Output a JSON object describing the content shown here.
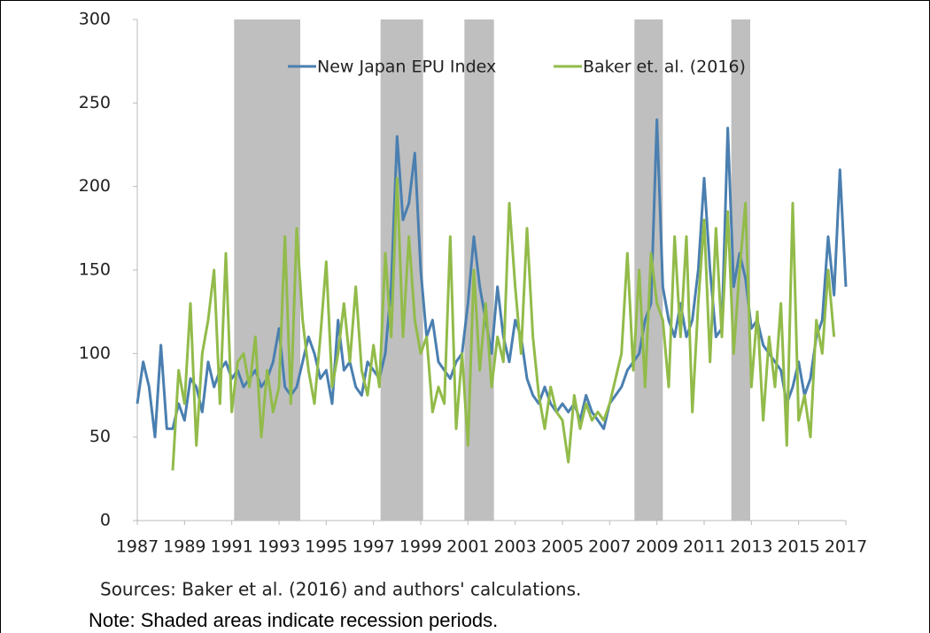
{
  "chart_data": {
    "type": "line",
    "x": [
      1987,
      1987.25,
      1987.5,
      1987.75,
      1988,
      1988.25,
      1988.5,
      1988.75,
      1989,
      1989.25,
      1989.5,
      1989.75,
      1990,
      1990.25,
      1990.5,
      1990.75,
      1991,
      1991.25,
      1991.5,
      1991.75,
      1992,
      1992.25,
      1992.5,
      1992.75,
      1993,
      1993.25,
      1993.5,
      1993.75,
      1994,
      1994.25,
      1994.5,
      1994.75,
      1995,
      1995.25,
      1995.5,
      1995.75,
      1996,
      1996.25,
      1996.5,
      1996.75,
      1997,
      1997.25,
      1997.5,
      1997.75,
      1998,
      1998.25,
      1998.5,
      1998.75,
      1999,
      1999.25,
      1999.5,
      1999.75,
      2000,
      2000.25,
      2000.5,
      2000.75,
      2001,
      2001.25,
      2001.5,
      2001.75,
      2002,
      2002.25,
      2002.5,
      2002.75,
      2003,
      2003.25,
      2003.5,
      2003.75,
      2004,
      2004.25,
      2004.5,
      2004.75,
      2005,
      2005.25,
      2005.5,
      2005.75,
      2006,
      2006.25,
      2006.5,
      2006.75,
      2007,
      2007.25,
      2007.5,
      2007.75,
      2008,
      2008.25,
      2008.5,
      2008.75,
      2009,
      2009.25,
      2009.5,
      2009.75,
      2010,
      2010.25,
      2010.5,
      2010.75,
      2011,
      2011.25,
      2011.5,
      2011.75,
      2012,
      2012.25,
      2012.5,
      2012.75,
      2013,
      2013.25,
      2013.5,
      2013.75,
      2014,
      2014.25,
      2014.5,
      2014.75,
      2015,
      2015.25,
      2015.5,
      2015.75,
      2016,
      2016.25,
      2016.5,
      2016.75,
      2017
    ],
    "series": [
      {
        "name": "New Japan EPU Index",
        "color": "#4a7fb0",
        "values": [
          70,
          95,
          80,
          50,
          105,
          55,
          55,
          70,
          60,
          85,
          80,
          65,
          95,
          80,
          90,
          95,
          85,
          90,
          80,
          85,
          90,
          80,
          85,
          95,
          115,
          80,
          75,
          80,
          95,
          110,
          100,
          85,
          90,
          70,
          120,
          90,
          95,
          80,
          75,
          95,
          90,
          85,
          100,
          140,
          230,
          180,
          190,
          220,
          150,
          110,
          120,
          95,
          90,
          85,
          95,
          100,
          130,
          170,
          140,
          120,
          100,
          140,
          110,
          95,
          120,
          110,
          85,
          75,
          70,
          80,
          70,
          65,
          70,
          65,
          70,
          60,
          75,
          65,
          60,
          55,
          70,
          75,
          80,
          90,
          95,
          100,
          120,
          130,
          240,
          140,
          120,
          110,
          130,
          110,
          120,
          150,
          205,
          150,
          110,
          115,
          235,
          140,
          160,
          145,
          115,
          120,
          105,
          100,
          95,
          90,
          70,
          80,
          95,
          75,
          85,
          110,
          120,
          170,
          135,
          210,
          140
        ]
      },
      {
        "name": "Baker et. al. (2016)",
        "color": "#92bb4a",
        "values": [
          null,
          null,
          null,
          null,
          null,
          null,
          30,
          90,
          70,
          130,
          45,
          100,
          120,
          150,
          70,
          160,
          65,
          95,
          100,
          80,
          110,
          50,
          90,
          65,
          80,
          170,
          70,
          175,
          120,
          90,
          70,
          110,
          155,
          80,
          100,
          130,
          95,
          140,
          90,
          75,
          105,
          80,
          160,
          110,
          205,
          110,
          170,
          120,
          100,
          110,
          65,
          80,
          70,
          170,
          55,
          100,
          45,
          150,
          90,
          130,
          80,
          110,
          95,
          190,
          140,
          100,
          175,
          110,
          75,
          55,
          80,
          65,
          60,
          35,
          75,
          55,
          70,
          60,
          65,
          60,
          70,
          85,
          100,
          160,
          90,
          150,
          80,
          160,
          130,
          120,
          80,
          170,
          110,
          170,
          65,
          130,
          180,
          95,
          175,
          110,
          185,
          100,
          150,
          190,
          80,
          125,
          60,
          110,
          80,
          130,
          45,
          190,
          60,
          75,
          50,
          120,
          100,
          150,
          110,
          null,
          null
        ]
      }
    ],
    "recessions": [
      [
        1991.1,
        1993.9
      ],
      [
        1997.3,
        1999.1
      ],
      [
        2000.85,
        2002.1
      ],
      [
        2008.05,
        2009.25
      ],
      [
        2012.15,
        2012.95
      ]
    ],
    "recession_color": "#bfbfbf",
    "xlim": [
      1987,
      2017
    ],
    "xticks": [
      1987,
      1989,
      1991,
      1993,
      1995,
      1997,
      1999,
      2001,
      2003,
      2005,
      2007,
      2009,
      2011,
      2013,
      2015,
      2017
    ],
    "ylim": [
      0,
      300
    ],
    "yticks": [
      0,
      50,
      100,
      150,
      200,
      250,
      300
    ],
    "grid": false,
    "legend": "top",
    "annotations": [
      "Sources: Baker et al. (2016) and authors' calculations.",
      "Note: Shaded areas indicate recession periods."
    ]
  }
}
